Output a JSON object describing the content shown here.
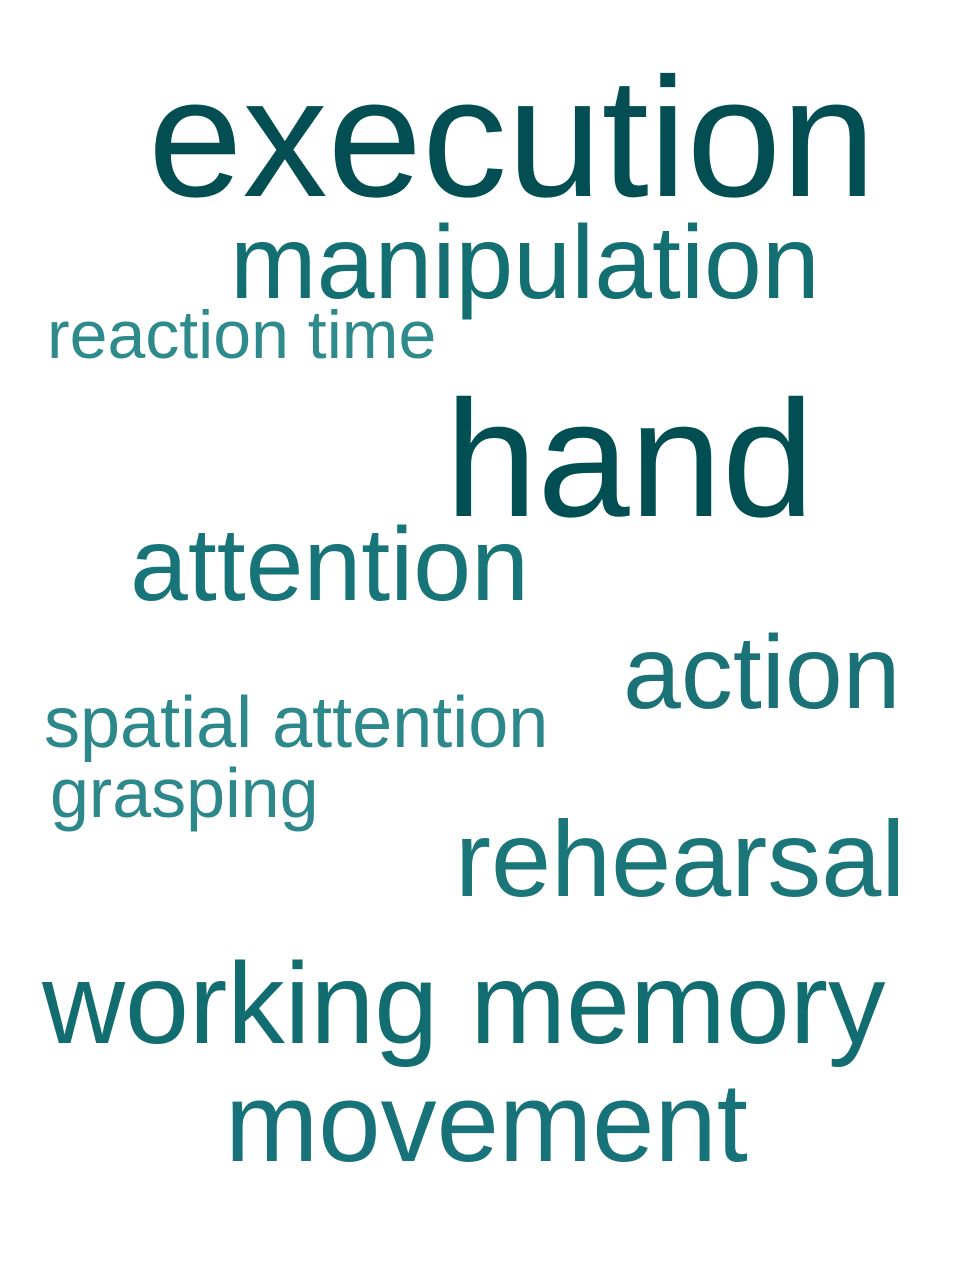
{
  "word_cloud": {
    "words": [
      {
        "key": "execution",
        "text": "execution",
        "color": "#024e52"
      },
      {
        "key": "manipulation",
        "text": "manipulation",
        "color": "#146f73"
      },
      {
        "key": "reaction_time",
        "text": "reaction time",
        "color": "#2f8a8c"
      },
      {
        "key": "hand",
        "text": "hand",
        "color": "#014f52"
      },
      {
        "key": "attention",
        "text": "attention",
        "color": "#177478"
      },
      {
        "key": "action",
        "text": "action",
        "color": "#1a7276"
      },
      {
        "key": "spatial_attention",
        "text": "spatial attention",
        "color": "#2c888a"
      },
      {
        "key": "grasping",
        "text": "grasping",
        "color": "#2c888a"
      },
      {
        "key": "rehearsal",
        "text": "rehearsal",
        "color": "#1b7679"
      },
      {
        "key": "working_memory",
        "text": "working memory",
        "color": "#126d71"
      },
      {
        "key": "movement",
        "text": "movement",
        "color": "#17727a"
      }
    ]
  }
}
